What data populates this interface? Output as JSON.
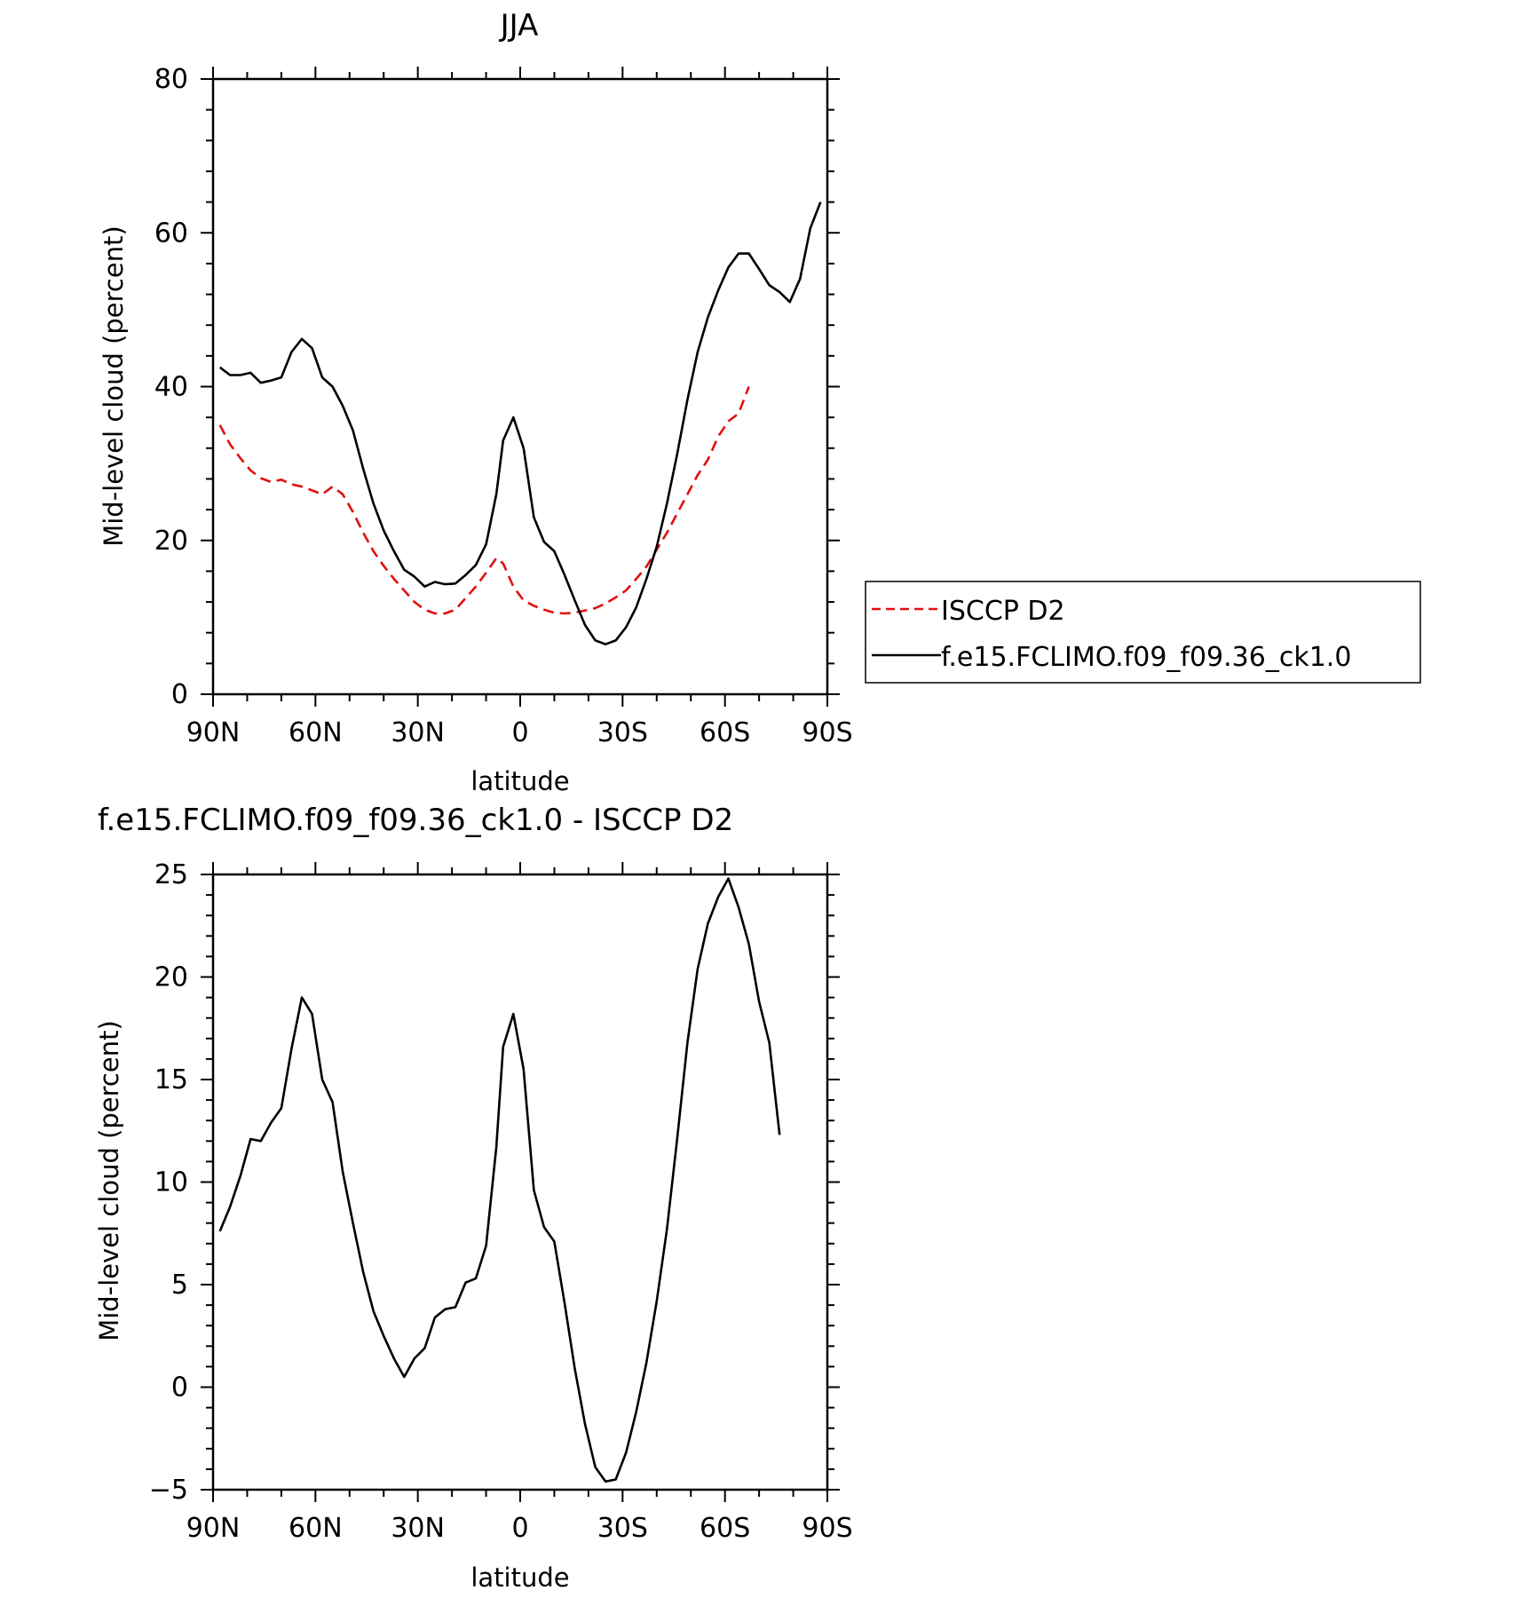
{
  "chart_data": [
    {
      "type": "line",
      "title": "JJA",
      "xlabel": "latitude",
      "ylabel": "Mid-level cloud (percent)",
      "xlim": [
        90,
        -90
      ],
      "ylim": [
        0,
        80
      ],
      "xticks": [
        90,
        60,
        30,
        0,
        -30,
        -60,
        -90
      ],
      "xtick_labels": [
        "90N",
        "60N",
        "30N",
        "0",
        "30S",
        "60S",
        "90S"
      ],
      "yticks": [
        0,
        20,
        40,
        60,
        80
      ],
      "ytick_labels": [
        "0",
        "20",
        "40",
        "60",
        "80"
      ],
      "grid": false,
      "legend": {
        "placement": "right",
        "entries": [
          "ISCCP D2",
          "f.e15.FCLIMO.f09_f09.36_ck1.0"
        ]
      },
      "series": [
        {
          "name": "ISCCP D2",
          "color": "#e01010",
          "dash": "dashed",
          "x": [
            88,
            85,
            82,
            79,
            76,
            73,
            70,
            67,
            64,
            61,
            58,
            55,
            52,
            49,
            46,
            43,
            40,
            37,
            34,
            31,
            28,
            25,
            22,
            19,
            16,
            13,
            10,
            7,
            5,
            2,
            -1,
            -4,
            -7,
            -10,
            -13,
            -16,
            -19,
            -22,
            -25,
            -28,
            -31,
            -34,
            -37,
            -40,
            -43,
            -46,
            -49,
            -52,
            -55,
            -58,
            -61,
            -64,
            -67
          ],
          "y": [
            35,
            32.5,
            30.7,
            29.1,
            28.1,
            27.6,
            27.9,
            27.3,
            27,
            26.5,
            26,
            27,
            26,
            23.7,
            21,
            18.6,
            16.7,
            15,
            13.5,
            12,
            11,
            10.5,
            10.5,
            11,
            12.5,
            14,
            15.8,
            17.7,
            17,
            14,
            12.2,
            11.5,
            11,
            10.6,
            10.5,
            10.6,
            10.9,
            11.2,
            11.8,
            12.6,
            13.5,
            15,
            16.6,
            18.8,
            21,
            23.5,
            26,
            28.5,
            30.5,
            33.5,
            35.5,
            36.5,
            40
          ]
        },
        {
          "name": "f.e15.FCLIMO.f09_f09.36_ck1.0",
          "color": "#000000",
          "dash": "solid",
          "x": [
            88,
            85,
            82,
            79,
            76,
            73,
            70,
            67,
            64,
            61,
            58,
            55,
            52,
            49,
            46,
            43,
            40,
            37,
            34,
            31,
            28,
            25,
            22,
            19,
            16,
            13,
            10,
            7,
            5,
            2,
            -1,
            -4,
            -7,
            -10,
            -13,
            -16,
            -19,
            -22,
            -25,
            -28,
            -31,
            -34,
            -37,
            -40,
            -43,
            -46,
            -49,
            -52,
            -55,
            -58,
            -61,
            -64,
            -67,
            -70,
            -73,
            -76,
            -79,
            -82,
            -85,
            -88
          ],
          "y": [
            42.5,
            41.5,
            41.5,
            41.8,
            40.5,
            40.8,
            41.2,
            44.5,
            46.2,
            45,
            41.2,
            40,
            37.5,
            34.3,
            29.3,
            24.8,
            21.3,
            18.6,
            16.2,
            15.3,
            14,
            14.6,
            14.3,
            14.4,
            15.5,
            16.8,
            19.5,
            26,
            33,
            36,
            32,
            23,
            19.8,
            18.6,
            15.5,
            12.2,
            9,
            7,
            6.5,
            7,
            8.7,
            11.3,
            15,
            19.2,
            24.8,
            31.2,
            38.3,
            44.5,
            49,
            52.5,
            55.5,
            57.3,
            57.3,
            55.3,
            53.2,
            52.3,
            51,
            54,
            60.6,
            64
          ]
        }
      ]
    },
    {
      "type": "line",
      "title": "f.e15.FCLIMO.f09_f09.36_ck1.0 - ISCCP D2",
      "xlabel": "latitude",
      "ylabel": "Mid-level cloud (percent)",
      "xlim": [
        90,
        -90
      ],
      "ylim": [
        -5,
        25
      ],
      "xticks": [
        90,
        60,
        30,
        0,
        -30,
        -60,
        -90
      ],
      "xtick_labels": [
        "90N",
        "60N",
        "30N",
        "0",
        "30S",
        "60S",
        "90S"
      ],
      "yticks": [
        -5,
        0,
        5,
        10,
        15,
        20,
        25
      ],
      "ytick_labels": [
        "-5",
        "0",
        "5",
        "10",
        "15",
        "20",
        "25"
      ],
      "grid": false,
      "series": [
        {
          "color": "#000000",
          "dash": "solid",
          "x": [
            88,
            85,
            82,
            79,
            76,
            73,
            70,
            67,
            64,
            61,
            58,
            55,
            52,
            49,
            46,
            43,
            40,
            37,
            34,
            31,
            28,
            25,
            22,
            19,
            16,
            13,
            10,
            7,
            5,
            2,
            -1,
            -4,
            -7,
            -10,
            -13,
            -16,
            -19,
            -22,
            -25,
            -28,
            -31,
            -34,
            -37,
            -40,
            -43,
            -46,
            -49,
            -52,
            -55,
            -58,
            -61,
            -64,
            -67
          ],
          "y": [
            7.6,
            8.8,
            10.3,
            12.1,
            12,
            12.9,
            13.6,
            16.5,
            19,
            18.2,
            15,
            13.9,
            10.5,
            8,
            5.6,
            3.7,
            2.5,
            1.4,
            0.5,
            1.4,
            1.9,
            3.4,
            3.8,
            3.9,
            5.1,
            5.3,
            6.9,
            11.7,
            16.6,
            18.2,
            15.5,
            9.6,
            7.8,
            7.1,
            4.1,
            0.9,
            -1.8,
            -3.9,
            -4.6,
            -4.5,
            -3.2,
            -1.2,
            1.2,
            4.2,
            7.7,
            12.1,
            16.8,
            20.4,
            22.6,
            23.9,
            24.8,
            23.4,
            21.6
          ]
        }
      ],
      "note_tail": {
        "x": [
          -70,
          -73,
          -76
        ],
        "y": [
          18.8,
          16.8,
          12.3
        ]
      }
    }
  ]
}
